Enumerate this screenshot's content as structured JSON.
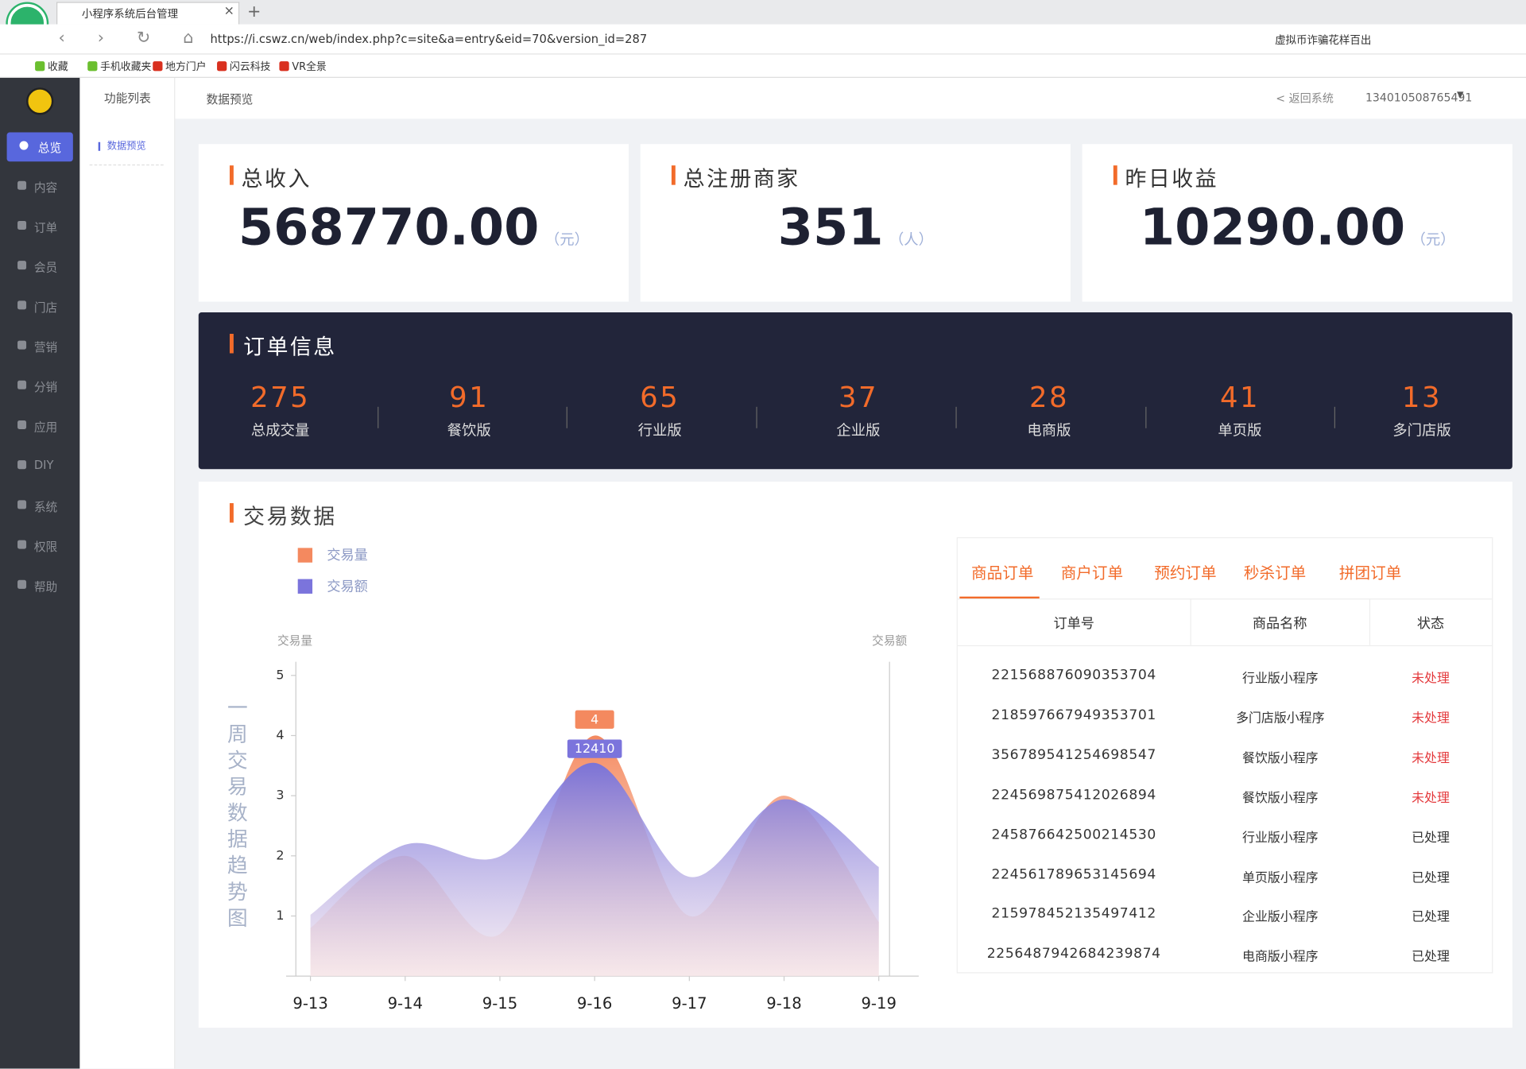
{
  "browser": {
    "tab_title": "小程序系统后台管理",
    "url": "https://i.cswz.cn/web/index.php?c=site&a=entry&eid=70&version_id=287",
    "search": "虚拟币诈骗花样百出",
    "bookmarks": [
      "收藏",
      "手机收藏夹",
      "地方门户",
      "闪云科技",
      "VR全景"
    ]
  },
  "sidebar": {
    "menu": [
      "总览",
      "内容",
      "订单",
      "会员",
      "门店",
      "营销",
      "分销",
      "应用",
      "DIY",
      "系统",
      "权限",
      "帮助"
    ]
  },
  "subnav": {
    "title": "功能列表",
    "items": [
      "数据预览"
    ]
  },
  "header": {
    "breadcrumb": "数据预览",
    "back": "< 返回系统",
    "user": "134010508765491"
  },
  "stats": [
    {
      "title": "总收入",
      "value": "568770.00",
      "unit": "（元）"
    },
    {
      "title": "总注册商家",
      "value": "351",
      "unit": "（人）"
    },
    {
      "title": "昨日收益",
      "value": "10290.00",
      "unit": "（元）"
    }
  ],
  "orders": {
    "title": "订单信息",
    "items": [
      {
        "value": "275",
        "label": "总成交量"
      },
      {
        "value": "91",
        "label": "餐饮版"
      },
      {
        "value": "65",
        "label": "行业版"
      },
      {
        "value": "37",
        "label": "企业版"
      },
      {
        "value": "28",
        "label": "电商版"
      },
      {
        "value": "41",
        "label": "单页版"
      },
      {
        "value": "13",
        "label": "多门店版"
      }
    ]
  },
  "trade": {
    "title": "交易数据",
    "tabs": [
      "商品订单",
      "商户订单",
      "预约订单",
      "秒杀订单",
      "拼团订单"
    ],
    "table": {
      "columns": [
        "订单号",
        "商品名称",
        "状态"
      ],
      "rows": [
        [
          "221568876090353704",
          "行业版小程序",
          "未处理"
        ],
        [
          "218597667949353701",
          "多门店版小程序",
          "未处理"
        ],
        [
          "356789541254698547",
          "餐饮版小程序",
          "未处理"
        ],
        [
          "224569875412026894",
          "餐饮版小程序",
          "未处理"
        ],
        [
          "245876642500214530",
          "行业版小程序",
          "已处理"
        ],
        [
          "224561789653145694",
          "单页版小程序",
          "已处理"
        ],
        [
          "215978452135497412",
          "企业版小程序",
          "已处理"
        ],
        [
          "2256487942684239874",
          "电商版小程序",
          "已处理"
        ]
      ]
    }
  },
  "chart_data": {
    "type": "area",
    "title": "一周交易数据趋势图",
    "y_label": "交易量",
    "y2_label": "交易额",
    "categories": [
      "9-13",
      "9-14",
      "9-15",
      "9-16",
      "9-17",
      "9-18",
      "9-19"
    ],
    "series": [
      {
        "name": "交易量",
        "color": "#f4895f",
        "values": [
          0.8,
          2,
          0.7,
          4,
          1,
          3,
          0.9
        ]
      },
      {
        "name": "交易额",
        "color": "#7b74dc",
        "values": [
          3570,
          7650,
          6970,
          12410,
          5780,
          10290,
          6350
        ],
        "axis": "y2"
      }
    ],
    "ylim": [
      0,
      5
    ],
    "yticks": [
      1,
      2,
      3,
      4,
      5
    ],
    "y2lim": [
      0,
      17500
    ]
  }
}
